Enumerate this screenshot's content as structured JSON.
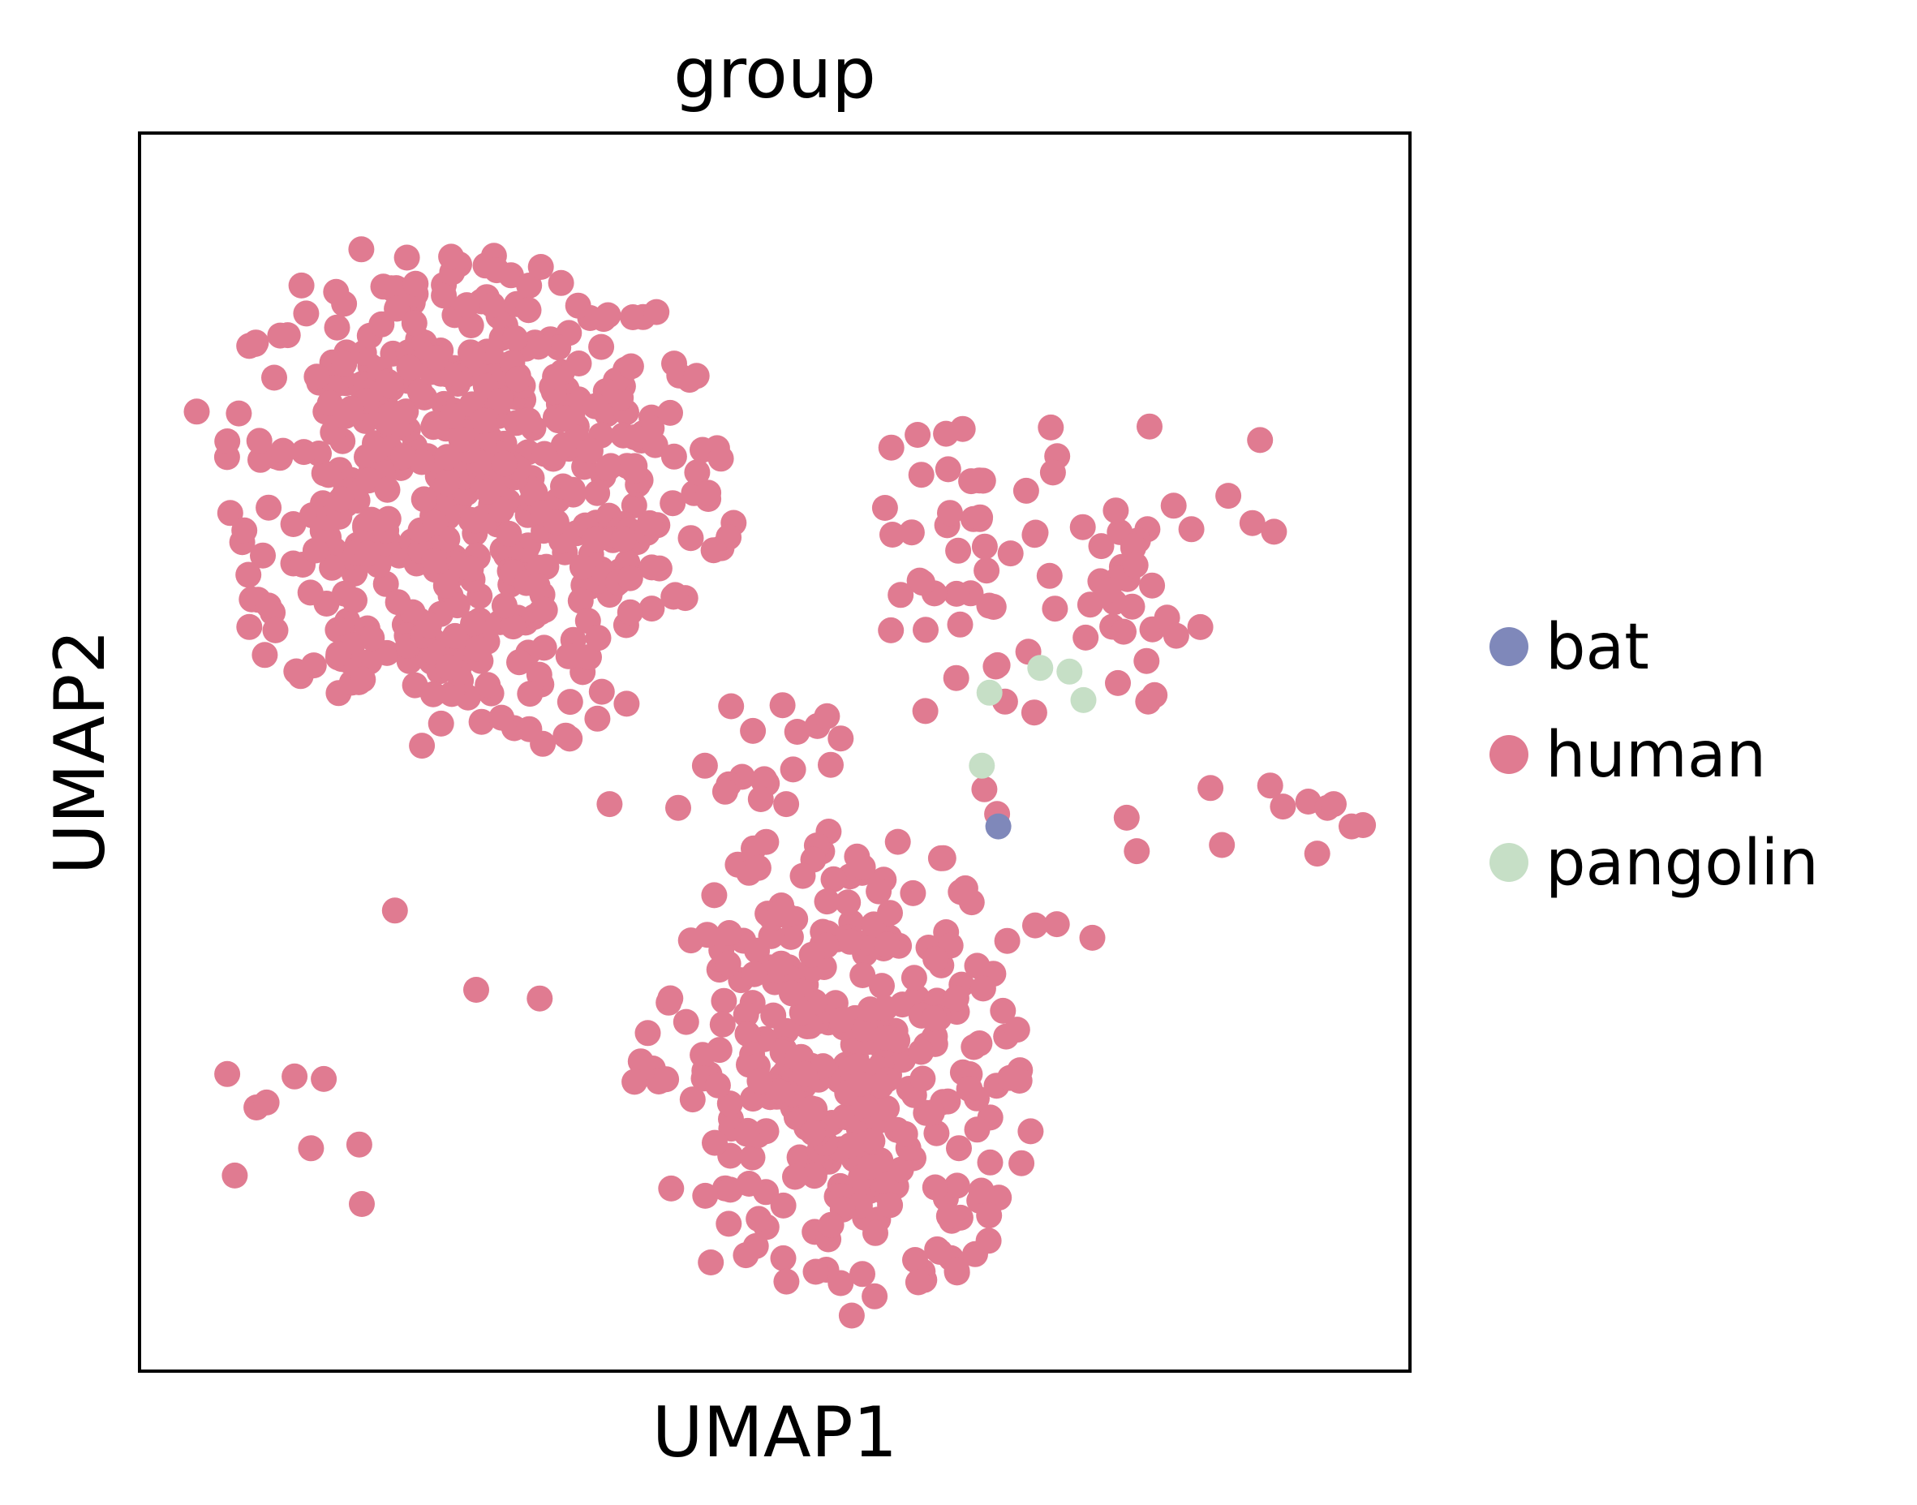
{
  "chart_data": {
    "type": "scatter",
    "title": "group",
    "xlabel": "UMAP1",
    "ylabel": "UMAP2",
    "xlim": [
      0,
      100
    ],
    "ylim": [
      0,
      100
    ],
    "grid": false,
    "ticks": false,
    "legend_position": "right",
    "series": [
      {
        "name": "bat",
        "color": "#7f88ba",
        "points": [
          [
            67.6,
            44.0
          ]
        ]
      },
      {
        "name": "human",
        "color": "#e07b91",
        "clusters": [
          {
            "cx": 26,
            "cy": 71,
            "rx": 20,
            "ry": 20,
            "n": 560
          },
          {
            "cx": 55,
            "cy": 24,
            "rx": 15,
            "ry": 19,
            "n": 340
          },
          {
            "cx": 66,
            "cy": 65,
            "rx": 9,
            "ry": 13,
            "n": 50
          },
          {
            "cx": 78,
            "cy": 62,
            "rx": 4,
            "ry": 10,
            "n": 22
          },
          {
            "cx": 50,
            "cy": 50,
            "rx": 5,
            "ry": 8,
            "n": 14
          }
        ],
        "points": [
          [
            4.5,
            77.5
          ],
          [
            6.9,
            24.0
          ],
          [
            7.5,
            15.8
          ],
          [
            9.2,
            21.3
          ],
          [
            10.0,
            21.7
          ],
          [
            12.2,
            23.8
          ],
          [
            13.5,
            18.0
          ],
          [
            14.5,
            23.6
          ],
          [
            17.3,
            18.3
          ],
          [
            17.5,
            13.5
          ],
          [
            20.1,
            37.2
          ],
          [
            26.5,
            30.8
          ],
          [
            31.5,
            30.1
          ],
          [
            52.2,
            40.0
          ],
          [
            50.9,
            45.8
          ],
          [
            37.0,
            45.8
          ],
          [
            42.4,
            45.5
          ],
          [
            46.1,
            46.8
          ],
          [
            48.9,
            46.2
          ],
          [
            44.5,
            48.9
          ],
          [
            50.4,
            37.0
          ],
          [
            66.5,
            47.0
          ],
          [
            67.5,
            45.0
          ],
          [
            65.0,
            39.0
          ],
          [
            70.5,
            36.0
          ],
          [
            72.2,
            36.1
          ],
          [
            75.0,
            35.0
          ],
          [
            79.9,
            54.6
          ],
          [
            77.7,
            44.7
          ],
          [
            78.5,
            42.0
          ],
          [
            84.3,
            47.1
          ],
          [
            85.2,
            42.5
          ],
          [
            89.0,
            47.3
          ],
          [
            90.0,
            45.6
          ],
          [
            92.0,
            46.0
          ],
          [
            93.5,
            45.5
          ],
          [
            95.4,
            44.0
          ],
          [
            94.0,
            45.8
          ],
          [
            96.3,
            44.1
          ],
          [
            92.7,
            41.8
          ],
          [
            83.5,
            60.1
          ],
          [
            81.4,
            69.9
          ],
          [
            78.4,
            65.1
          ],
          [
            82.8,
            68.0
          ],
          [
            81.6,
            59.4
          ],
          [
            79.5,
            76.3
          ],
          [
            87.6,
            68.5
          ],
          [
            89.3,
            67.8
          ],
          [
            88.2,
            75.2
          ],
          [
            85.7,
            70.7
          ]
        ]
      },
      {
        "name": "pangolin",
        "color": "#c6dfc6",
        "points": [
          [
            66.9,
            54.8
          ],
          [
            66.3,
            48.9
          ],
          [
            70.9,
            56.8
          ],
          [
            73.2,
            56.5
          ],
          [
            74.3,
            54.2
          ]
        ]
      }
    ]
  }
}
